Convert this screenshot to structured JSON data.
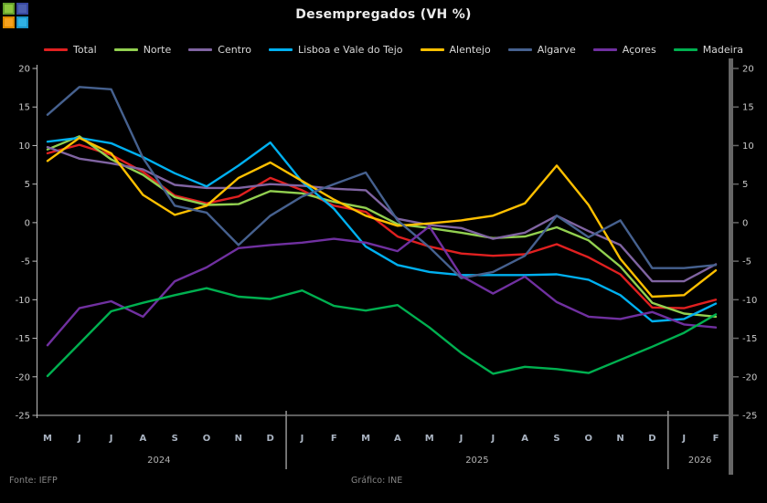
{
  "title": "Desempregados (VH %)",
  "footer": {
    "source": "Fonte: IEFP",
    "credit": "Gráfico: INE"
  },
  "logo": {
    "squares": [
      {
        "name": "green-square",
        "fill": "#8dc63f",
        "border": "#64a02c"
      },
      {
        "name": "blue-square",
        "fill": "#4d5fb0",
        "border": "#3847a0"
      },
      {
        "name": "orange-square",
        "fill": "#f6a21d",
        "border": "#db8a00"
      },
      {
        "name": "cyan-square",
        "fill": "#2fb1e4",
        "border": "#1b94c8"
      }
    ]
  },
  "chart_data": {
    "type": "line",
    "title": "Desempregados (VH %)",
    "xlabel": "",
    "ylabel": "",
    "ylim": [
      -25,
      20
    ],
    "yticks": [
      20,
      15,
      10,
      5,
      0,
      -5,
      -10,
      -15,
      -20,
      -25
    ],
    "grid": false,
    "legend_position": "top",
    "x_labels": [
      "M",
      "J",
      "J",
      "A",
      "S",
      "O",
      "N",
      "D",
      "J",
      "F",
      "M",
      "A",
      "M",
      "J",
      "J",
      "A",
      "S",
      "O",
      "N",
      "D",
      "J",
      "F"
    ],
    "year_groups": [
      {
        "label": "2024",
        "start": 0,
        "end": 7
      },
      {
        "label": "2025",
        "start": 8,
        "end": 19
      },
      {
        "label": "2026",
        "start": 20,
        "end": 21
      }
    ],
    "series": [
      {
        "key": "total",
        "name": "Total",
        "color": "#e02020",
        "values": [
          9.0,
          10.1,
          8.8,
          6.6,
          3.5,
          2.5,
          3.4,
          5.8,
          4.2,
          2.2,
          1.4,
          -1.8,
          -3.1,
          -4.0,
          -4.3,
          -4.1,
          -2.8,
          -4.5,
          -6.7,
          -11.0,
          -11.1,
          -10.0
        ]
      },
      {
        "key": "norte",
        "name": "Norte",
        "color": "#92d050",
        "values": [
          9.5,
          11.2,
          8.2,
          6.2,
          3.3,
          2.3,
          2.4,
          4.1,
          3.8,
          2.7,
          1.9,
          -0.2,
          -0.7,
          -1.3,
          -2.0,
          -1.8,
          -0.6,
          -2.3,
          -5.7,
          -10.4,
          -11.8,
          -12.2
        ]
      },
      {
        "key": "centro",
        "name": "Centro",
        "color": "#8064a2",
        "values": [
          9.8,
          8.3,
          7.7,
          6.9,
          4.9,
          4.5,
          4.5,
          5.0,
          4.8,
          4.4,
          4.2,
          0.5,
          -0.3,
          -0.7,
          -2.1,
          -1.3,
          0.9,
          -1.1,
          -2.9,
          -7.6,
          -7.6,
          -5.4
        ]
      },
      {
        "key": "lvt",
        "name": "Lisboa e Vale do Tejo",
        "color": "#00b0f0",
        "values": [
          10.5,
          11.0,
          10.3,
          8.5,
          6.4,
          4.7,
          7.4,
          10.4,
          5.3,
          1.8,
          -3.1,
          -5.5,
          -6.4,
          -6.8,
          -6.8,
          -6.8,
          -6.7,
          -7.4,
          -9.4,
          -12.8,
          -12.5,
          -10.5
        ]
      },
      {
        "key": "alentejo",
        "name": "Alentejo",
        "color": "#ffc000",
        "values": [
          8.0,
          11.0,
          9.0,
          3.6,
          1.0,
          2.2,
          5.8,
          7.8,
          5.4,
          3.0,
          0.9,
          -0.4,
          -0.1,
          0.3,
          0.9,
          2.5,
          7.4,
          2.3,
          -4.7,
          -9.6,
          -9.4,
          -6.2
        ]
      },
      {
        "key": "algarve",
        "name": "Algarve",
        "color": "#46618f",
        "values": [
          14.0,
          17.6,
          17.3,
          8.4,
          2.2,
          1.3,
          -2.9,
          0.9,
          3.4,
          5.0,
          6.5,
          0.3,
          -3.2,
          -7.2,
          -6.4,
          -4.3,
          0.9,
          -1.9,
          0.3,
          -5.9,
          -5.9,
          -5.5
        ]
      },
      {
        "key": "acores",
        "name": "Açores",
        "color": "#7030a0",
        "values": [
          -15.9,
          -11.1,
          -10.2,
          -12.2,
          -7.6,
          -5.8,
          -3.3,
          -2.9,
          -2.6,
          -2.1,
          -2.6,
          -3.7,
          -0.5,
          -6.9,
          -9.2,
          -7.0,
          -10.3,
          -12.2,
          -12.5,
          -11.6,
          -13.2,
          -13.6
        ]
      },
      {
        "key": "madeira",
        "name": "Madeira",
        "color": "#00b050",
        "values": [
          -19.9,
          -15.7,
          -11.5,
          -10.4,
          -9.4,
          -8.5,
          -9.6,
          -9.9,
          -8.8,
          -10.8,
          -11.4,
          -10.7,
          -13.6,
          -16.9,
          -19.6,
          -18.7,
          -19.0,
          -19.5,
          -17.8,
          -16.1,
          -14.3,
          -11.9
        ]
      }
    ],
    "axis_colors": {
      "left_axis_line": "#bdbdbd",
      "right_axis_bar": "#666666",
      "tick_label": "#c9c9c9",
      "month_label": "#aab4c2",
      "year_label": "#b3b3b3",
      "separator": "#8c8c8c"
    }
  }
}
